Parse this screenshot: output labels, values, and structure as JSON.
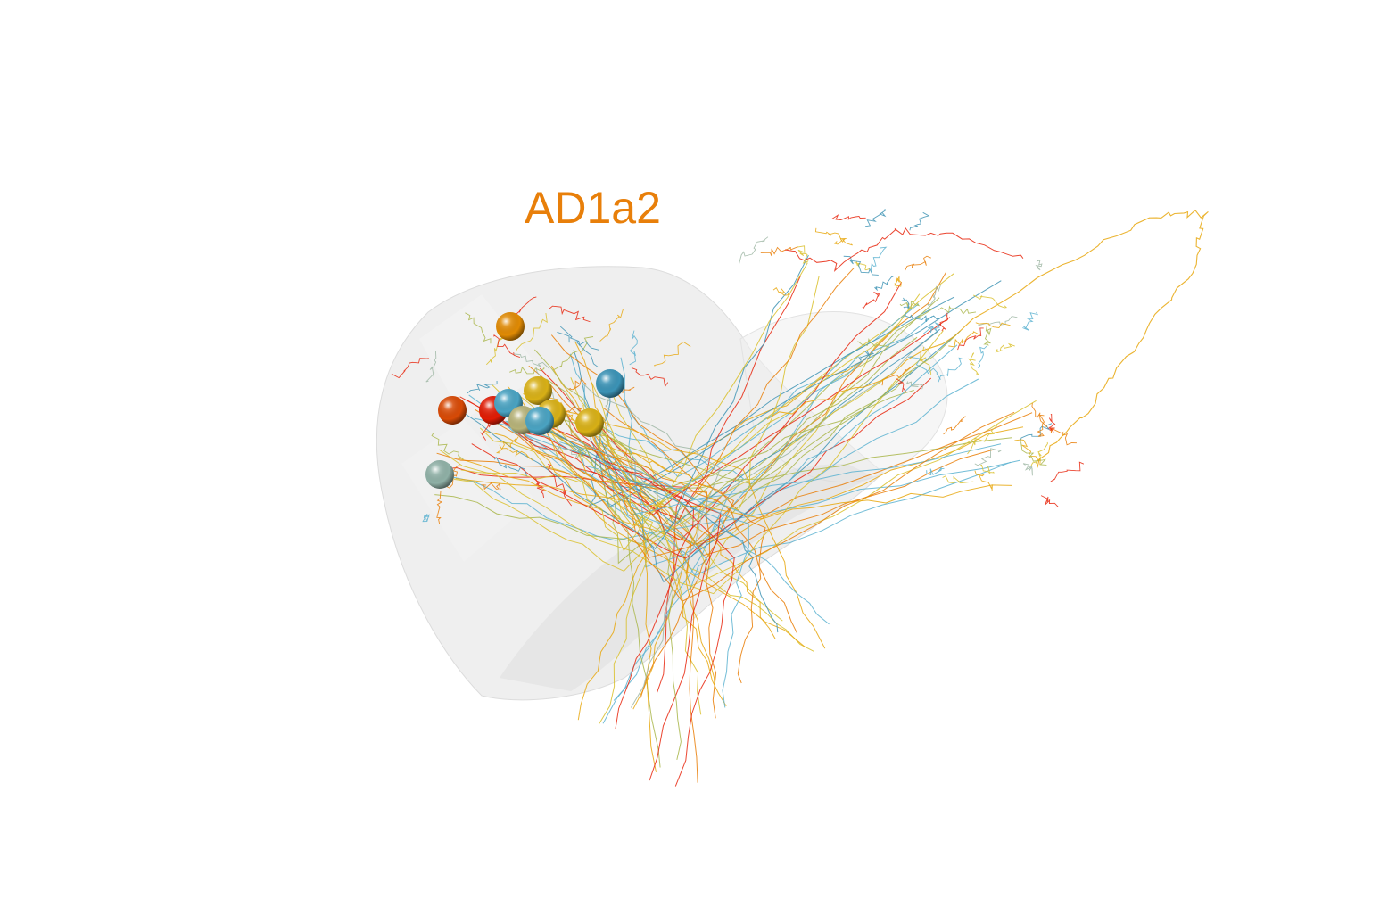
{
  "title": {
    "text": "AD1a2",
    "color": "#e87f0a"
  },
  "scene": {
    "background": "#ffffff",
    "neuropil_color": "#e6e6e6",
    "neuron_colors": [
      "#e8250c",
      "#e97d05",
      "#e8a70d",
      "#d9bf2a",
      "#a9b64a",
      "#5ab2d0",
      "#3d93b4",
      "#9fb7a4"
    ]
  },
  "somata": [
    {
      "color": "#e08a04",
      "name": "soma-orange-top"
    },
    {
      "color": "#d84a06",
      "name": "soma-red-orange"
    },
    {
      "color": "#e01c05",
      "name": "soma-red"
    },
    {
      "color": "#4aa3c2",
      "name": "soma-blue-1"
    },
    {
      "color": "#d8b016",
      "name": "soma-yellow-1"
    },
    {
      "color": "#d8b016",
      "name": "soma-yellow-2"
    },
    {
      "color": "#b6b278",
      "name": "soma-olive"
    },
    {
      "color": "#4aa3c2",
      "name": "soma-blue-2"
    },
    {
      "color": "#3b93b6",
      "name": "soma-blue-3"
    },
    {
      "color": "#d8b016",
      "name": "soma-yellow-3"
    },
    {
      "color": "#8fb0a6",
      "name": "soma-grey-green"
    }
  ]
}
